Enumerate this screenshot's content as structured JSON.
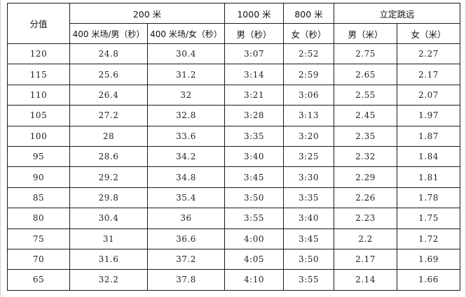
{
  "headers": {
    "score": "分值",
    "run200": "200 米",
    "run1000": "1000 米",
    "run800": "800 米",
    "jump": "立定跳远",
    "sub_male200": "400 米场/男（秒）",
    "sub_female200": "400 米场/女（秒）",
    "sub_male1000": "男（秒）",
    "sub_female800": "女（秒）",
    "sub_jump_male": "男（米）",
    "sub_jump_female": "女（米）"
  },
  "rows": [
    {
      "score": "120",
      "m200": "24.8",
      "f200": "30.4",
      "m1000": "3:07",
      "f800": "2:52",
      "jm": "2.75",
      "jf": "2.27"
    },
    {
      "score": "115",
      "m200": "25.6",
      "f200": "31.2",
      "m1000": "3:14",
      "f800": "2:59",
      "jm": "2.65",
      "jf": "2.17"
    },
    {
      "score": "110",
      "m200": "26.4",
      "f200": "32",
      "m1000": "3:21",
      "f800": "3:06",
      "jm": "2.55",
      "jf": "2.07"
    },
    {
      "score": "105",
      "m200": "27.2",
      "f200": "32.8",
      "m1000": "3:28",
      "f800": "3:13",
      "jm": "2.45",
      "jf": "1.97"
    },
    {
      "score": "100",
      "m200": "28",
      "f200": "33.6",
      "m1000": "3:35",
      "f800": "3:20",
      "jm": "2.35",
      "jf": "1.87"
    },
    {
      "score": "95",
      "m200": "28.6",
      "f200": "34.2",
      "m1000": "3:40",
      "f800": "3:25",
      "jm": "2.32",
      "jf": "1.84"
    },
    {
      "score": "90",
      "m200": "29.2",
      "f200": "34.8",
      "m1000": "3:45",
      "f800": "3:30",
      "jm": "2.29",
      "jf": "1.81"
    },
    {
      "score": "85",
      "m200": "29.8",
      "f200": "35.4",
      "m1000": "3:50",
      "f800": "3:35",
      "jm": "2.26",
      "jf": "1.78"
    },
    {
      "score": "80",
      "m200": "30.4",
      "f200": "36",
      "m1000": "3:55",
      "f800": "3:40",
      "jm": "2.23",
      "jf": "1.75"
    },
    {
      "score": "75",
      "m200": "31",
      "f200": "36.6",
      "m1000": "4:00",
      "f800": "3:45",
      "jm": "2.2",
      "jf": "1.72"
    },
    {
      "score": "70",
      "m200": "31.6",
      "f200": "37.2",
      "m1000": "4:05",
      "f800": "3:50",
      "jm": "2.17",
      "jf": "1.69"
    },
    {
      "score": "65",
      "m200": "32.2",
      "f200": "37.8",
      "m1000": "4:10",
      "f800": "3:55",
      "jm": "2.14",
      "jf": "1.66"
    }
  ]
}
